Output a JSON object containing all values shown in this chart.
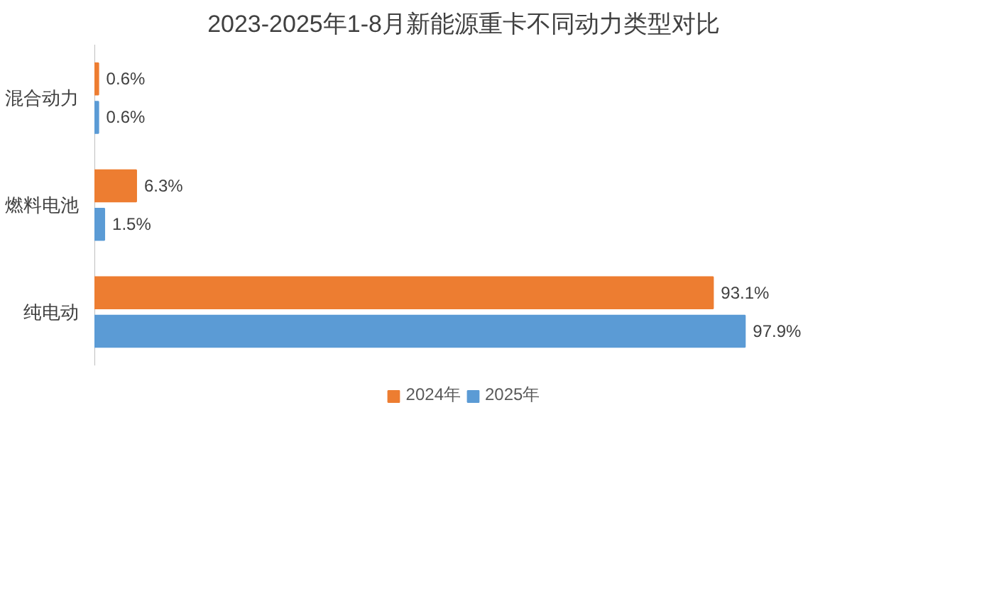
{
  "chart_data": {
    "type": "bar",
    "orientation": "horizontal",
    "title": "2023-2025年1-8月新能源重卡不同动力类型对比",
    "categories": [
      "混合动力",
      "燃料电池",
      "纯电动"
    ],
    "series": [
      {
        "name": "2024年",
        "color": "#ed7d31",
        "values": [
          0.6,
          6.3,
          93.1
        ],
        "value_labels": [
          "0.6%",
          "6.3%",
          "93.1%"
        ]
      },
      {
        "name": "2025年",
        "color": "#5b9bd5",
        "values": [
          0.6,
          1.5,
          97.9
        ],
        "value_labels": [
          "0.6%",
          "1.5%",
          "97.9%"
        ]
      }
    ],
    "grid": false,
    "legend": "bottom"
  }
}
